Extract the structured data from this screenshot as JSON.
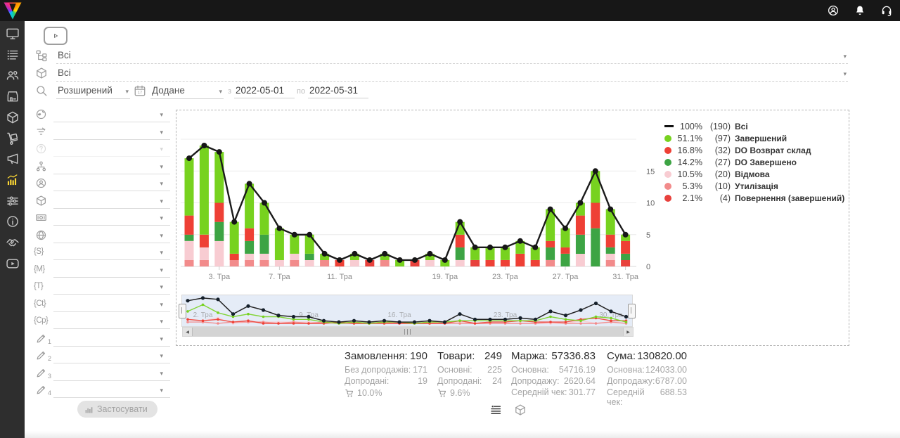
{
  "topbar": {
    "icons": [
      {
        "icon": "user-circle",
        "name": "account"
      },
      {
        "icon": "bell",
        "name": "notifications"
      },
      {
        "icon": "headset",
        "name": "support"
      }
    ]
  },
  "sidebar": {
    "items": [
      {
        "icon": "monitor",
        "name": "dashboard"
      },
      {
        "icon": "list",
        "name": "orders"
      },
      {
        "icon": "users",
        "name": "clients"
      },
      {
        "icon": "store",
        "name": "store"
      },
      {
        "icon": "box3d",
        "name": "products"
      },
      {
        "icon": "trolley",
        "name": "supply"
      },
      {
        "icon": "megaphone",
        "name": "marketing"
      },
      {
        "icon": "chart",
        "name": "analytics",
        "active": true
      },
      {
        "icon": "sliders",
        "name": "settings"
      },
      {
        "icon": "info",
        "name": "info"
      },
      {
        "icon": "handshake",
        "name": "partners"
      },
      {
        "icon": "video",
        "name": "tutorials"
      }
    ]
  },
  "filters": {
    "status_filter": {
      "icon": "tree",
      "value": "Всі"
    },
    "product_filter": {
      "icon": "box3d",
      "value": "Всі"
    },
    "search_mode": {
      "icon": "search",
      "value": "Розширений"
    },
    "date_filter": {
      "icon": "calendar",
      "field": "Додане",
      "from_label": "з",
      "from_value": "2022-05-01",
      "to_label": "по",
      "to_value": "2022-05-31"
    },
    "rows": [
      {
        "icon": "globe",
        "name": "country"
      },
      {
        "icon": "funnel",
        "name": "funnel"
      },
      {
        "icon": "question",
        "name": "unknown",
        "disabled": true
      },
      {
        "icon": "sitemap",
        "name": "structure"
      },
      {
        "icon": "user-circle",
        "name": "manager"
      },
      {
        "icon": "box3d",
        "name": "product"
      },
      {
        "icon": "money",
        "name": "payment"
      },
      {
        "icon": "globe2",
        "name": "source"
      },
      {
        "tag": "{S}",
        "name": "utm-source"
      },
      {
        "tag": "{M}",
        "name": "utm-medium"
      },
      {
        "tag": "{T}",
        "name": "utm-term"
      },
      {
        "tag": "{Ct}",
        "name": "utm-content"
      },
      {
        "tag": "{Cp}",
        "name": "utm-campaign"
      },
      {
        "icon": "pencil",
        "num": "1",
        "name": "custom-field-1"
      },
      {
        "icon": "pencil",
        "num": "2",
        "name": "custom-field-2"
      },
      {
        "icon": "pencil",
        "num": "3",
        "name": "custom-field-3"
      },
      {
        "icon": "pencil",
        "num": "4",
        "name": "custom-field-4"
      }
    ],
    "apply_label": "Застосувати"
  },
  "chart_data": {
    "type": "bar",
    "subtype": "stacked bars with total line overlay, time x-axis (May 2022, day 15 absent)",
    "days": [
      "1",
      "2",
      "3",
      "4",
      "5",
      "6",
      "7",
      "8",
      "9",
      "10",
      "11",
      "12",
      "13",
      "14",
      "16",
      "17",
      "18",
      "19",
      "20",
      "21",
      "22",
      "23",
      "24",
      "25",
      "26",
      "27",
      "28",
      "29",
      "30",
      "31"
    ],
    "x_tick_labels": [
      "3. Тра",
      "7. Тра",
      "11. Тра",
      "19. Тра",
      "23. Тра",
      "27. Тра",
      "31. Тра"
    ],
    "x_tick_days": [
      "3",
      "7",
      "11",
      "19",
      "23",
      "27",
      "31"
    ],
    "y_ticks": [
      0,
      5,
      10,
      15
    ],
    "ylim": [
      0,
      20
    ],
    "legend_position": "right",
    "line": {
      "name": "Всі",
      "pct": "100%",
      "count": 190,
      "color": "#1a1a1a",
      "values": [
        17,
        19,
        18,
        7,
        13,
        10,
        6,
        5,
        5,
        2,
        1,
        2,
        1,
        2,
        1,
        1,
        2,
        1,
        7,
        3,
        3,
        3,
        4,
        3,
        9,
        6,
        10,
        15,
        9,
        5
      ]
    },
    "series": [
      {
        "name": "Завершений",
        "pct": "51.1%",
        "count": 97,
        "color": "#77d21f",
        "values": [
          9,
          14,
          8,
          5,
          7,
          5,
          5,
          3,
          3,
          1,
          0,
          1,
          0,
          1,
          1,
          0,
          1,
          1,
          2,
          2,
          2,
          2,
          2,
          2,
          5,
          3,
          2,
          5,
          4,
          1
        ]
      },
      {
        "name": "DO Возврат склад",
        "pct": "16.8%",
        "count": 32,
        "color": "#ee4035",
        "values": [
          3,
          2,
          3,
          1,
          2,
          0,
          0,
          0,
          0,
          0,
          1,
          0,
          0,
          0,
          0,
          0,
          0,
          0,
          2,
          0,
          1,
          1,
          2,
          1,
          1,
          1,
          3,
          4,
          2,
          2
        ]
      },
      {
        "name": "DO Завершено",
        "pct": "14.2%",
        "count": 27,
        "color": "#3da444",
        "values": [
          1,
          0,
          3,
          0,
          2,
          3,
          0,
          0,
          1,
          0,
          0,
          0,
          0,
          0,
          0,
          0,
          0,
          0,
          2,
          0,
          0,
          0,
          0,
          0,
          2,
          2,
          3,
          6,
          1,
          1
        ]
      },
      {
        "name": "Відмова",
        "pct": "10.5%",
        "count": 20,
        "color": "#f8ccd2",
        "values": [
          3,
          2,
          4,
          0,
          1,
          1,
          1,
          1,
          1,
          0,
          0,
          1,
          0,
          0,
          0,
          0,
          1,
          0,
          1,
          0,
          0,
          0,
          0,
          0,
          0,
          0,
          2,
          0,
          1,
          0
        ]
      },
      {
        "name": "Утилізація",
        "pct": "5.3%",
        "count": 10,
        "color": "#f28b8b",
        "values": [
          1,
          1,
          0,
          1,
          1,
          1,
          0,
          1,
          0,
          1,
          0,
          0,
          0,
          1,
          0,
          0,
          0,
          0,
          0,
          0,
          0,
          0,
          0,
          0,
          1,
          0,
          0,
          0,
          1,
          0
        ]
      },
      {
        "name": "Повернення (завершений)",
        "pct": "2.1%",
        "count": 4,
        "color": "#e8413c",
        "values": [
          0,
          0,
          0,
          0,
          0,
          0,
          0,
          0,
          0,
          0,
          0,
          0,
          1,
          0,
          0,
          1,
          0,
          0,
          0,
          1,
          0,
          0,
          0,
          0,
          0,
          0,
          0,
          0,
          0,
          1
        ]
      }
    ],
    "stack_order_bottom_to_top": [
      5,
      4,
      3,
      2,
      1,
      0
    ],
    "navigator_label_days": [
      "2",
      "9",
      "16",
      "23",
      "30"
    ],
    "navigator_labels": [
      "2. Тра",
      "9. Тра",
      "16. Тра",
      "23. Тра",
      "30. Тра"
    ]
  },
  "stats": {
    "columns": [
      {
        "name": "orders",
        "title": "Замовлення:",
        "value": "190",
        "cart_pct": "10.0%",
        "rows": [
          {
            "label": "Без допродажів:",
            "value": "171"
          },
          {
            "label": "Допродані:",
            "value": "19"
          }
        ]
      },
      {
        "name": "items",
        "title": "Товари:",
        "value": "249",
        "cart_pct": "9.6%",
        "rows": [
          {
            "label": "Основні:",
            "value": "225"
          },
          {
            "label": "Допродані:",
            "value": "24"
          }
        ]
      },
      {
        "name": "margin",
        "title": "Маржа:",
        "value": "57336.83",
        "rows": [
          {
            "label": "Основна:",
            "value": "54716.19"
          },
          {
            "label": "Допродажу:",
            "value": "2620.64"
          },
          {
            "label": "Середній чек:",
            "value": "301.77"
          }
        ]
      },
      {
        "name": "total",
        "title": "Сума:",
        "value": "130820.00",
        "rows": [
          {
            "label": "Основна:",
            "value": "124033.00"
          },
          {
            "label": "Допродажу:",
            "value": "6787.00"
          },
          {
            "label": "Середній чек:",
            "value": "688.53"
          }
        ]
      }
    ]
  },
  "view_toggle": [
    {
      "icon": "list-lines",
      "name": "orders-view",
      "active": true
    },
    {
      "icon": "box3d",
      "name": "products-view",
      "active": false
    }
  ]
}
